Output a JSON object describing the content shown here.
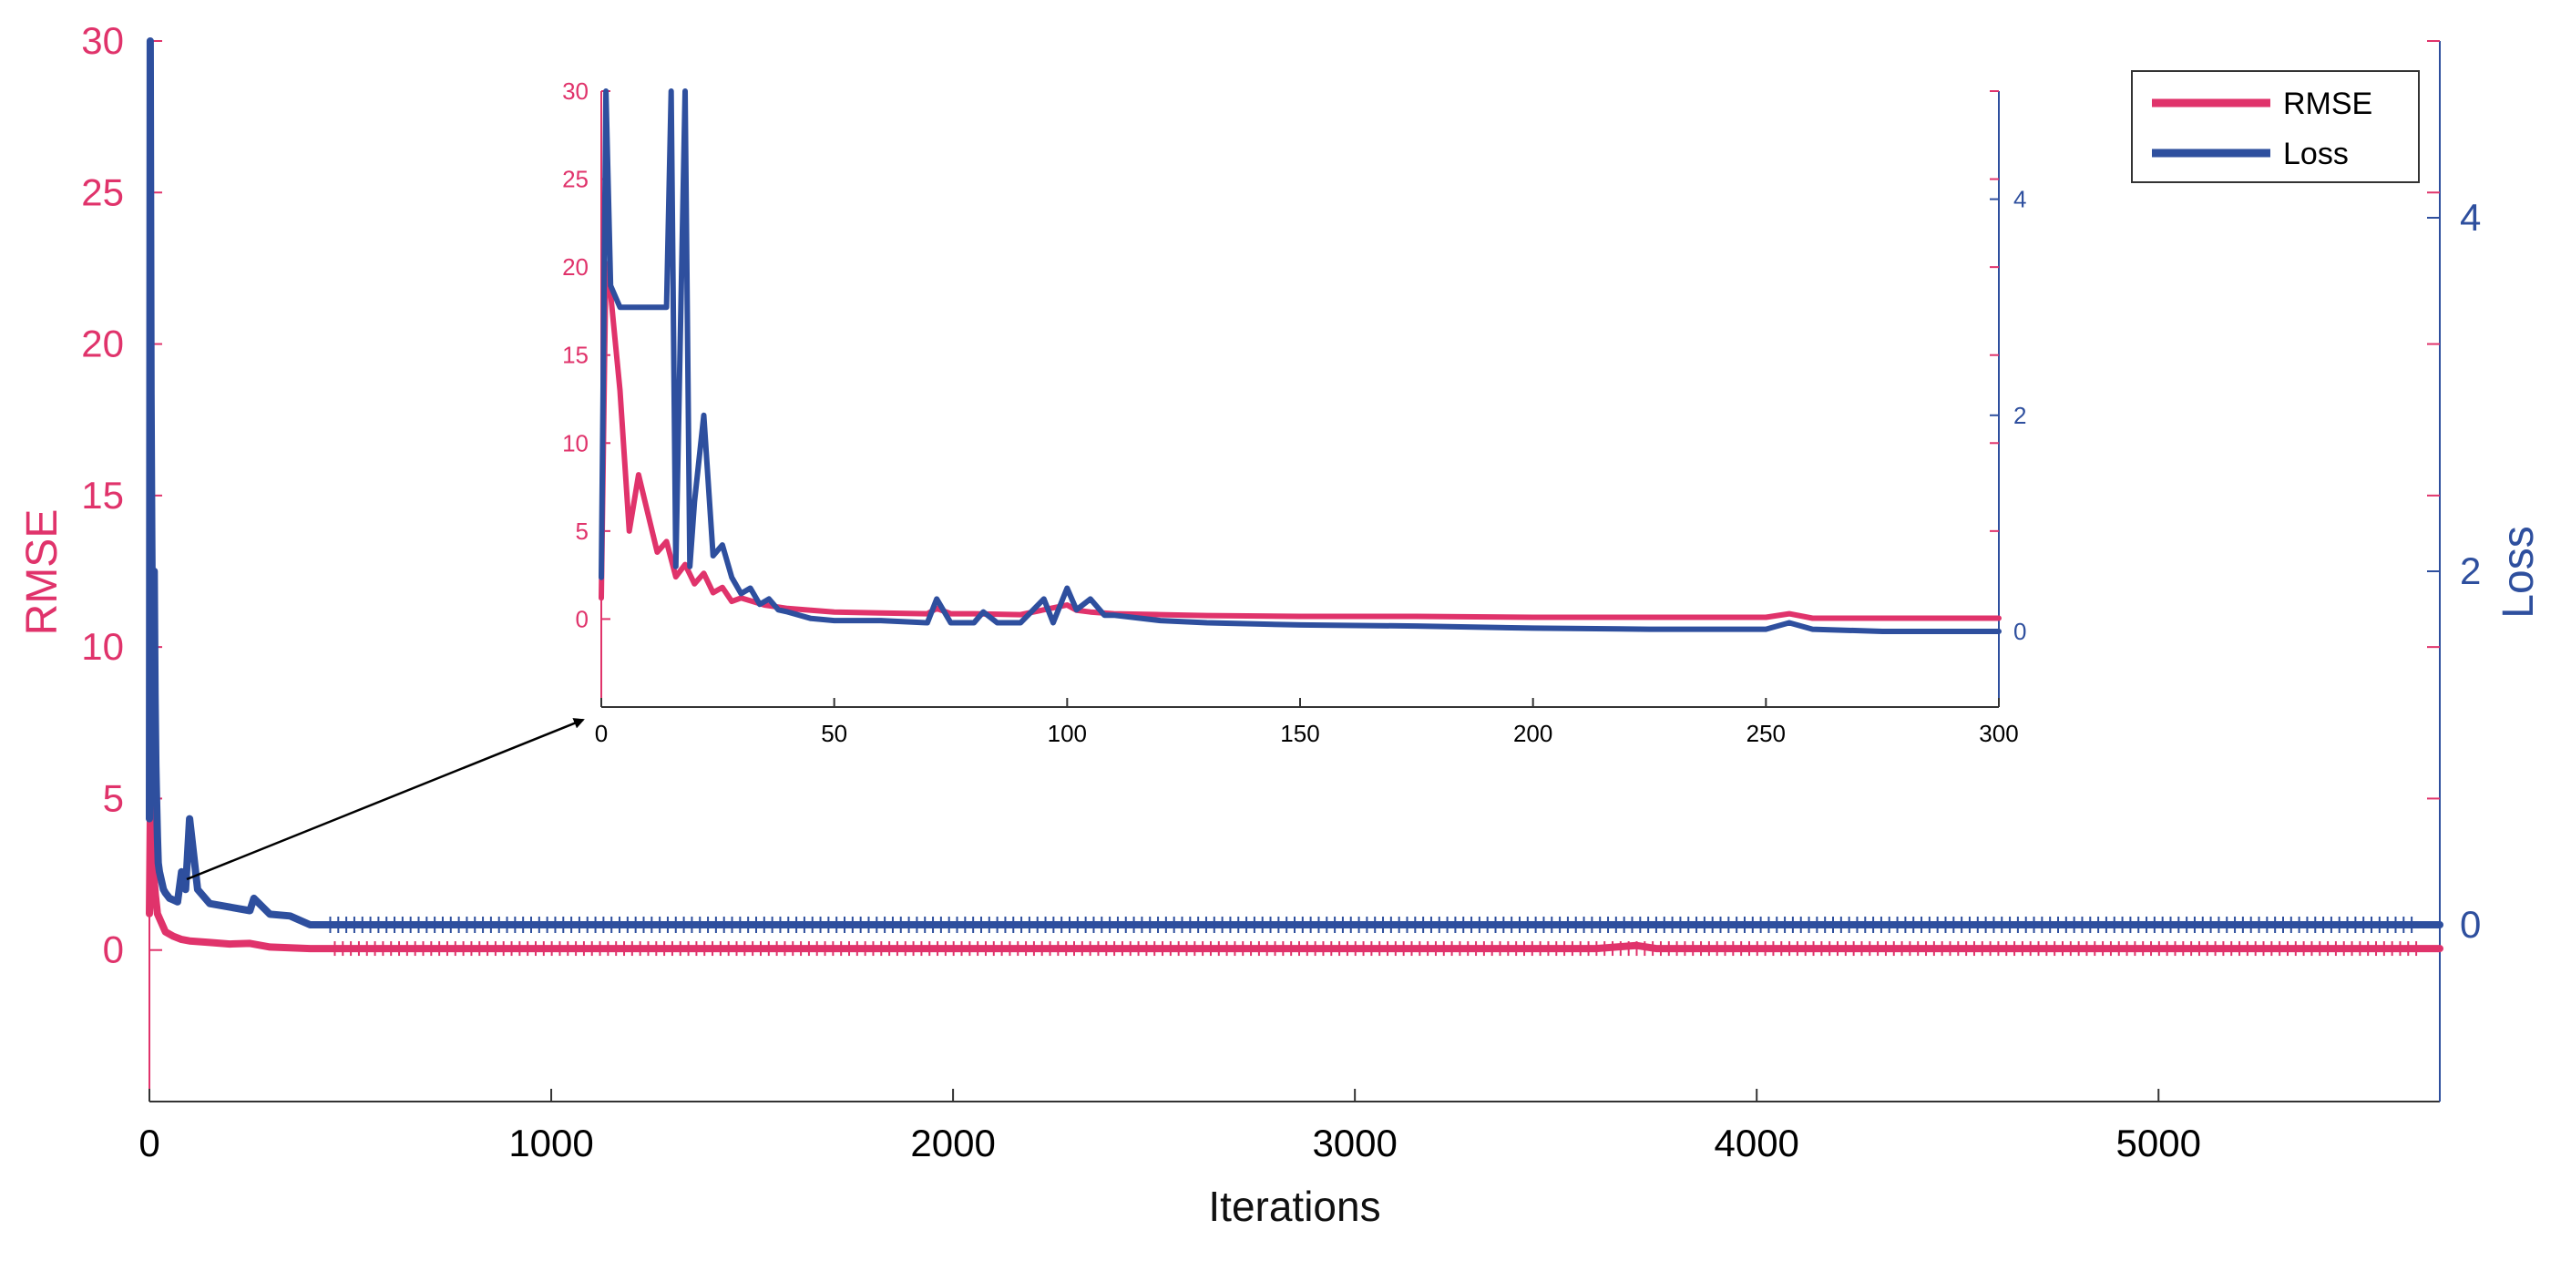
{
  "chart_data": [
    {
      "id": "main",
      "type": "line",
      "title": "",
      "xlabel": "Iterations",
      "ylabel_left": "RMSE",
      "ylabel_right": "Loss",
      "xlim": [
        0,
        5700
      ],
      "ylim_left": [
        -5,
        30
      ],
      "ylim_right": [
        -1,
        5
      ],
      "xticks": [
        0,
        1000,
        2000,
        3000,
        4000,
        5000
      ],
      "yticks_left": [
        0,
        5,
        10,
        15,
        20,
        25,
        30
      ],
      "yticks_right": [
        0,
        2,
        4
      ],
      "legend": {
        "position": "top-right",
        "entries": [
          "RMSE",
          "Loss"
        ]
      },
      "series": [
        {
          "name": "RMSE",
          "axis": "left",
          "color": "#e0336b",
          "x": [
            0,
            3,
            6,
            10,
            15,
            20,
            30,
            40,
            60,
            80,
            100,
            150,
            200,
            250,
            300,
            400,
            500,
            1000,
            2000,
            3000,
            3600,
            3700,
            3750,
            3800,
            4000,
            5000,
            5700
          ],
          "y": [
            1.2,
            5.4,
            3.5,
            2.6,
            1.8,
            1.2,
            0.9,
            0.6,
            0.45,
            0.35,
            0.3,
            0.25,
            0.2,
            0.22,
            0.1,
            0.05,
            0.05,
            0.05,
            0.05,
            0.05,
            0.05,
            0.15,
            0.05,
            0.05,
            0.05,
            0.05,
            0.05
          ]
        },
        {
          "name": "Loss",
          "axis": "right",
          "color": "#2e4f9e",
          "x": [
            0,
            2,
            4,
            6,
            8,
            10,
            12,
            14,
            16,
            18,
            20,
            22,
            25,
            30,
            35,
            40,
            50,
            60,
            70,
            80,
            90,
            100,
            110,
            120,
            150,
            200,
            250,
            260,
            300,
            350,
            400,
            500,
            1000,
            2000,
            3000,
            4000,
            5000,
            5700
          ],
          "y": [
            0.6,
            5.0,
            3.0,
            2.2,
            1.5,
            1.1,
            2.0,
            1.3,
            0.9,
            0.7,
            0.5,
            0.35,
            0.3,
            0.25,
            0.2,
            0.18,
            0.15,
            0.14,
            0.13,
            0.3,
            0.2,
            0.6,
            0.4,
            0.2,
            0.12,
            0.1,
            0.08,
            0.15,
            0.06,
            0.05,
            0.0,
            0.0,
            0.0,
            0.0,
            0.0,
            0.0,
            0.0,
            0.0
          ]
        }
      ]
    },
    {
      "id": "inset",
      "type": "line",
      "title": "",
      "xlabel": "",
      "ylabel_left": "",
      "ylabel_right": "",
      "xlim": [
        0,
        300
      ],
      "ylim_left": [
        -5,
        30
      ],
      "ylim_right": [
        -0.7,
        5
      ],
      "xticks": [
        0,
        50,
        100,
        150,
        200,
        250,
        300
      ],
      "yticks_left": [
        0,
        5,
        10,
        15,
        20,
        25,
        30
      ],
      "yticks_right": [
        0,
        2,
        4
      ],
      "annotation": "arrow from the early-iteration region of the main plot to the inset (zoom of iterations 0–300)",
      "series": [
        {
          "name": "RMSE",
          "axis": "left",
          "color": "#e0336b",
          "x": [
            0,
            1,
            2,
            4,
            6,
            8,
            10,
            12,
            14,
            16,
            18,
            20,
            22,
            24,
            26,
            28,
            30,
            35,
            40,
            45,
            50,
            60,
            70,
            72,
            75,
            80,
            90,
            100,
            102,
            105,
            110,
            120,
            130,
            150,
            175,
            200,
            225,
            250,
            255,
            260,
            275,
            300
          ],
          "y": [
            1.2,
            20.2,
            18.5,
            13.0,
            5.0,
            8.2,
            6.0,
            3.8,
            4.4,
            2.4,
            3.1,
            2.0,
            2.6,
            1.5,
            1.8,
            1.0,
            1.2,
            0.8,
            0.6,
            0.5,
            0.4,
            0.35,
            0.3,
            0.6,
            0.3,
            0.3,
            0.25,
            0.8,
            0.5,
            0.4,
            0.3,
            0.25,
            0.2,
            0.15,
            0.15,
            0.1,
            0.1,
            0.1,
            0.3,
            0.05,
            0.05,
            0.05
          ]
        },
        {
          "name": "Loss",
          "axis": "right",
          "color": "#2e4f9e",
          "x": [
            0,
            1,
            2,
            4,
            6,
            8,
            10,
            12,
            14,
            15,
            16,
            18,
            19,
            20,
            22,
            24,
            26,
            28,
            30,
            32,
            34,
            36,
            38,
            40,
            45,
            50,
            60,
            70,
            72,
            75,
            80,
            82,
            85,
            90,
            95,
            97,
            100,
            102,
            105,
            108,
            110,
            120,
            130,
            150,
            175,
            200,
            225,
            250,
            255,
            260,
            275,
            300
          ],
          "y": [
            0.5,
            5.0,
            3.2,
            3.0,
            3.0,
            3.0,
            3.0,
            3.0,
            3.0,
            5.0,
            0.6,
            5.0,
            0.6,
            1.2,
            2.0,
            0.7,
            0.8,
            0.5,
            0.35,
            0.4,
            0.25,
            0.3,
            0.2,
            0.18,
            0.12,
            0.1,
            0.1,
            0.08,
            0.3,
            0.08,
            0.08,
            0.18,
            0.08,
            0.08,
            0.3,
            0.08,
            0.4,
            0.2,
            0.3,
            0.15,
            0.15,
            0.1,
            0.08,
            0.06,
            0.05,
            0.03,
            0.02,
            0.02,
            0.08,
            0.02,
            0.0,
            0.0
          ]
        }
      ]
    }
  ],
  "main": {
    "xlabel": "Iterations",
    "ylabel_left": "RMSE",
    "ylabel_right": "Loss"
  },
  "legend": {
    "rmse_label": "RMSE",
    "loss_label": "Loss"
  },
  "colors": {
    "rmse": "#e0336b",
    "loss": "#2e4f9e"
  }
}
